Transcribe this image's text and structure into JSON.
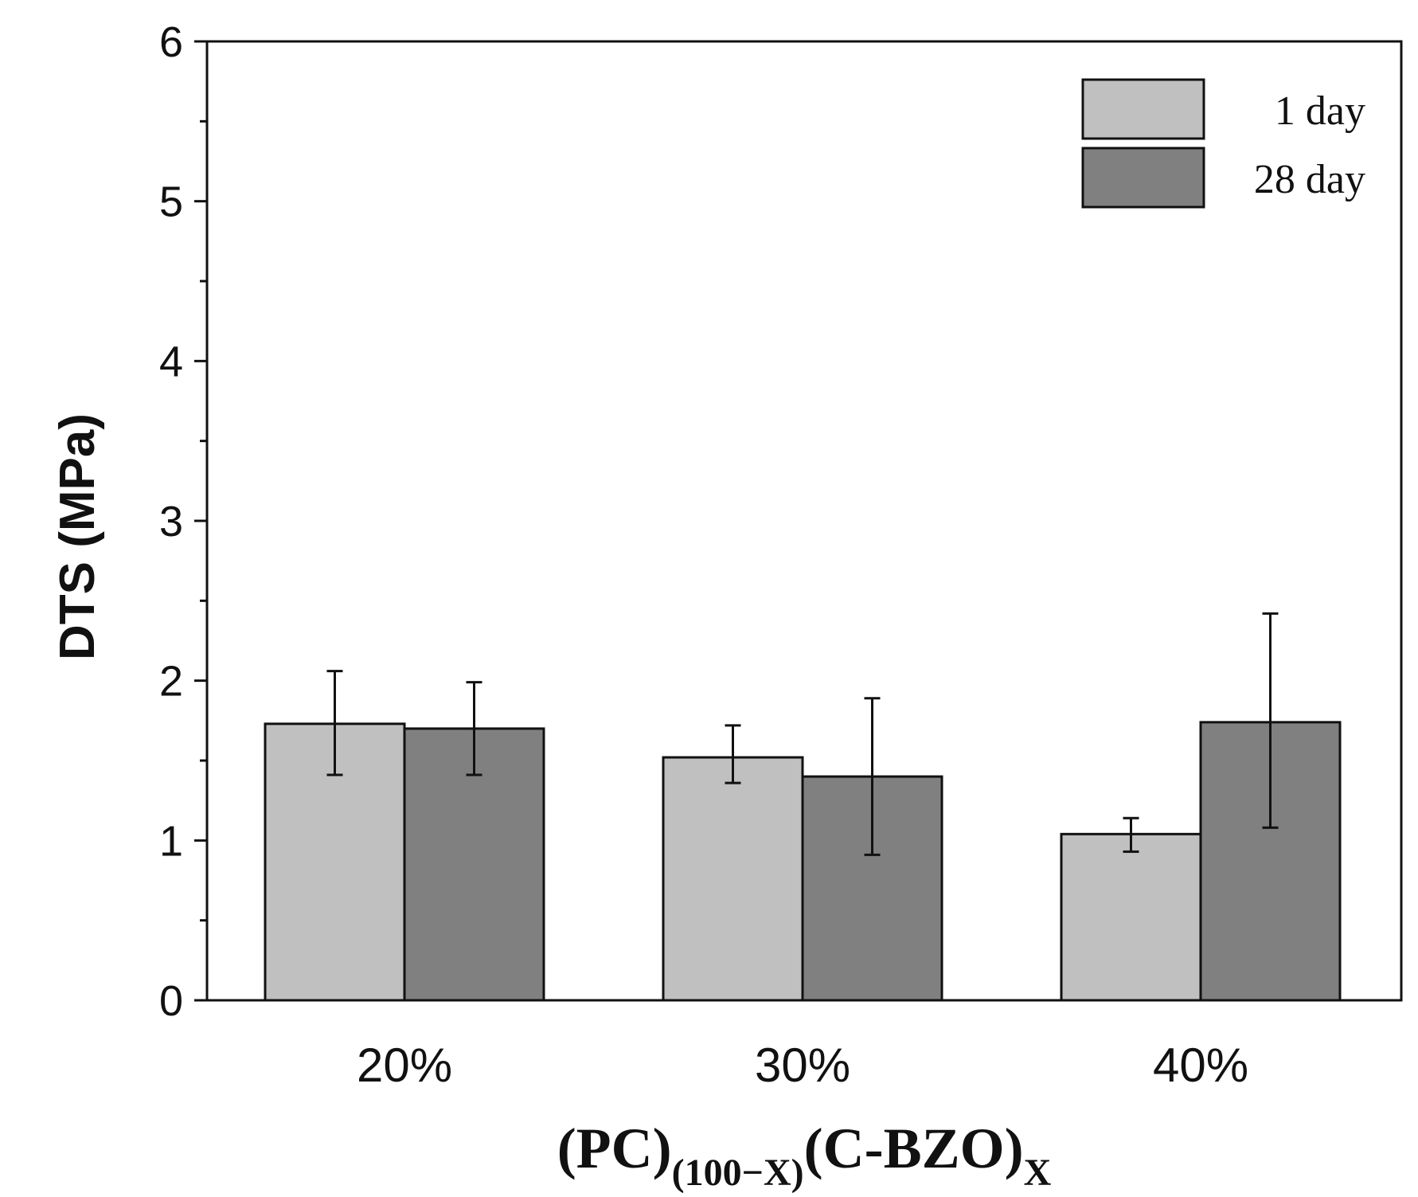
{
  "chart_data": {
    "type": "bar",
    "title": "",
    "categories": [
      "20%",
      "30%",
      "40%"
    ],
    "series": [
      {
        "name": "1 day",
        "color": "#c0c0c0",
        "values": [
          1.73,
          1.52,
          1.04
        ],
        "error": [
          [
            1.41,
            2.06
          ],
          [
            1.36,
            1.72
          ],
          [
            0.93,
            1.14
          ]
        ]
      },
      {
        "name": "28 day",
        "color": "#808080",
        "values": [
          1.7,
          1.4,
          1.74
        ],
        "error": [
          [
            1.41,
            1.99
          ],
          [
            0.91,
            1.89
          ],
          [
            1.08,
            2.42
          ]
        ]
      }
    ],
    "ylabel": "DTS (MPa)",
    "xlabel": {
      "main": "(PC)",
      "sub1": "(100−X)",
      "main2": "(C-BZO)",
      "sub2": "X"
    },
    "ylim": [
      0,
      6
    ],
    "yticks": [
      "0",
      "1",
      "2",
      "3",
      "4",
      "5",
      "6"
    ],
    "legend_position": "top-right",
    "grid": false
  }
}
